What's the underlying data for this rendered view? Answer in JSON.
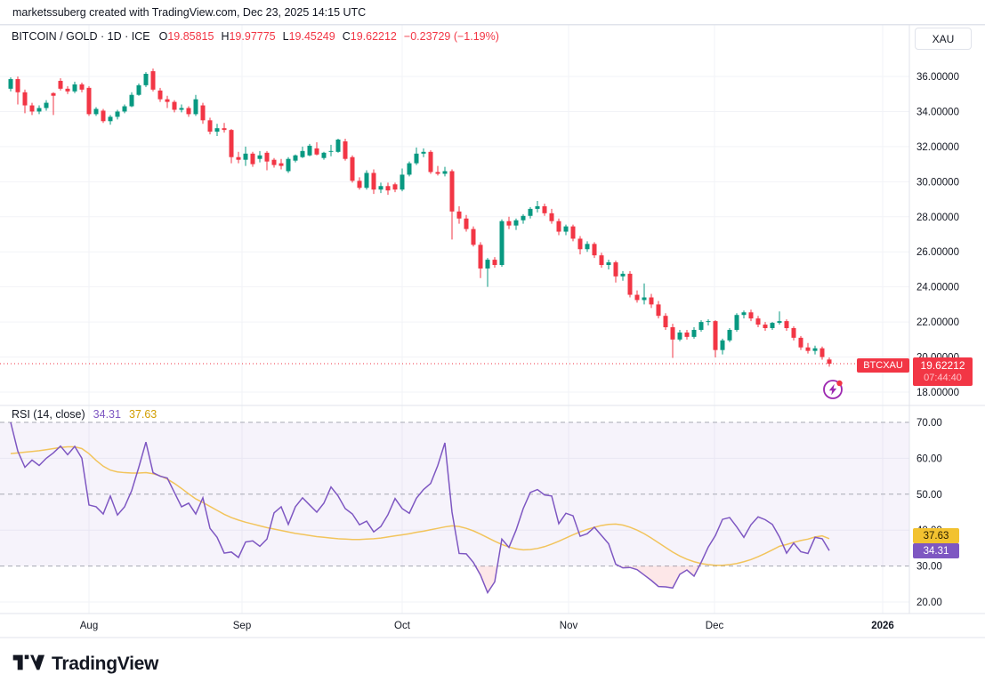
{
  "topbar": {
    "attribution": "marketssuberg created with TradingView.com, Dec 23, 2025 14:15 UTC"
  },
  "legend": {
    "title": "BITCOIN / GOLD · 1D · ICE",
    "o_label": "O",
    "o": "19.85815",
    "h_label": "H",
    "h": "19.97775",
    "l_label": "L",
    "l": "19.45249",
    "c_label": "C",
    "c": "19.62212",
    "change": "−0.23729 (−1.19%)"
  },
  "axis": {
    "currency": "XAU"
  },
  "price_label": {
    "symbol": "BTCXAU",
    "price": "19.62212",
    "countdown": "07:44:40"
  },
  "rsi_legend": {
    "title": "RSI (14, close)",
    "value": "34.31",
    "ma_value": "37.63"
  },
  "badges": {
    "ma": "37.63",
    "rsi": "34.31"
  },
  "footer": {
    "brand": "TradingView"
  },
  "colors": {
    "up": "#089981",
    "down": "#F23645",
    "rsi_line": "#7E57C2",
    "rsi_ma_line": "#F2C45C",
    "band_fill": "rgba(126,87,194,0.07)",
    "oversold_fill": "rgba(242,54,69,0.12)",
    "grid": "#F2F3F7",
    "dashed": "#A6A9B3",
    "separator": "#E0E3EB",
    "text": "#131722",
    "icon_purple": "#9C27B0"
  },
  "chart_data": {
    "type": "candlestick",
    "symbol": "BITCOIN / GOLD",
    "interval": "1D",
    "exchange": "ICE",
    "title": "BITCOIN / GOLD · 1D · ICE",
    "last": {
      "o": 19.85815,
      "h": 19.97775,
      "l": 19.45249,
      "c": 19.62212,
      "change": -0.23729,
      "change_pct": -1.19
    },
    "price_axis": {
      "ticks": [
        36,
        34,
        32,
        30,
        28,
        26,
        24,
        22,
        20,
        18
      ],
      "decimals": 5
    },
    "time_axis": {
      "labels": [
        {
          "label": "Aug"
        },
        {
          "label": "Sep"
        },
        {
          "label": "Oct"
        },
        {
          "label": "Nov"
        },
        {
          "label": "Dec"
        },
        {
          "label": "2026",
          "bold": true
        }
      ]
    },
    "grid": true,
    "candles": [
      [
        35.3,
        35.95,
        35.15,
        35.85
      ],
      [
        35.85,
        36.0,
        34.4,
        35.1
      ],
      [
        35.1,
        35.25,
        33.9,
        34.35
      ],
      [
        34.35,
        34.5,
        33.8,
        34.0
      ],
      [
        34.0,
        34.35,
        33.85,
        34.2
      ],
      [
        34.2,
        34.65,
        34.05,
        34.5
      ],
      [
        35.05,
        35.1,
        33.8,
        34.9
      ],
      [
        35.75,
        35.9,
        35.2,
        35.3
      ],
      [
        35.3,
        35.45,
        35.0,
        35.15
      ],
      [
        35.15,
        35.7,
        35.05,
        35.55
      ],
      [
        35.55,
        35.65,
        35.1,
        35.25
      ],
      [
        35.35,
        35.45,
        33.75,
        33.85
      ],
      [
        33.85,
        34.25,
        33.75,
        34.15
      ],
      [
        34.05,
        34.15,
        33.35,
        33.45
      ],
      [
        33.45,
        33.8,
        33.25,
        33.7
      ],
      [
        33.7,
        34.1,
        33.55,
        34.0
      ],
      [
        34.0,
        34.4,
        33.9,
        34.3
      ],
      [
        34.3,
        35.1,
        34.25,
        34.95
      ],
      [
        34.95,
        35.6,
        34.9,
        35.5
      ],
      [
        35.5,
        36.25,
        35.4,
        36.15
      ],
      [
        36.3,
        36.45,
        35.15,
        35.25
      ],
      [
        35.2,
        35.35,
        34.55,
        34.7
      ],
      [
        34.7,
        34.9,
        34.2,
        34.55
      ],
      [
        34.55,
        34.65,
        33.95,
        34.1
      ],
      [
        34.1,
        34.4,
        33.95,
        34.2
      ],
      [
        34.2,
        34.3,
        33.7,
        33.85
      ],
      [
        33.85,
        34.95,
        33.75,
        34.7
      ],
      [
        34.35,
        34.5,
        33.3,
        33.5
      ],
      [
        33.5,
        33.65,
        32.7,
        32.85
      ],
      [
        32.85,
        33.3,
        32.6,
        33.05
      ],
      [
        33.05,
        33.35,
        32.8,
        32.95
      ],
      [
        32.95,
        33.0,
        31.05,
        31.4
      ],
      [
        31.4,
        31.7,
        31.05,
        31.25
      ],
      [
        31.25,
        32.0,
        30.9,
        31.6
      ],
      [
        31.6,
        31.7,
        30.85,
        31.0
      ],
      [
        31.3,
        31.75,
        31.1,
        31.5
      ],
      [
        31.65,
        31.75,
        30.65,
        31.15
      ],
      [
        31.25,
        31.35,
        30.8,
        30.95
      ],
      [
        31.05,
        31.3,
        30.7,
        30.9
      ],
      [
        30.6,
        31.4,
        30.5,
        31.3
      ],
      [
        31.2,
        31.55,
        31.1,
        31.5
      ],
      [
        31.4,
        32.0,
        31.35,
        31.75
      ],
      [
        31.5,
        32.15,
        31.45,
        32.05
      ],
      [
        31.9,
        32.25,
        31.5,
        31.55
      ],
      [
        31.35,
        31.7,
        31.25,
        31.65
      ],
      [
        31.7,
        32.1,
        31.45,
        31.75
      ],
      [
        31.7,
        32.45,
        31.65,
        32.4
      ],
      [
        32.3,
        32.45,
        31.2,
        31.3
      ],
      [
        31.4,
        31.5,
        29.95,
        30.05
      ],
      [
        30.05,
        30.25,
        29.55,
        29.65
      ],
      [
        29.65,
        30.65,
        29.55,
        30.5
      ],
      [
        30.5,
        30.7,
        29.3,
        29.55
      ],
      [
        29.55,
        29.95,
        29.35,
        29.75
      ],
      [
        29.75,
        29.95,
        29.25,
        29.5
      ],
      [
        29.85,
        29.95,
        29.4,
        29.55
      ],
      [
        29.55,
        30.75,
        29.45,
        30.4
      ],
      [
        30.4,
        31.15,
        30.3,
        31.05
      ],
      [
        31.05,
        31.95,
        30.95,
        31.6
      ],
      [
        31.6,
        31.9,
        31.4,
        31.7
      ],
      [
        31.7,
        31.8,
        30.45,
        30.55
      ],
      [
        30.55,
        30.9,
        30.35,
        30.45
      ],
      [
        30.45,
        30.85,
        30.3,
        30.6
      ],
      [
        30.6,
        30.7,
        26.7,
        28.3
      ],
      [
        28.3,
        28.6,
        27.6,
        27.9
      ],
      [
        27.9,
        28.1,
        27.15,
        27.3
      ],
      [
        27.3,
        27.45,
        26.3,
        26.4
      ],
      [
        26.4,
        26.55,
        24.5,
        25.05
      ],
      [
        25.05,
        25.65,
        24.0,
        25.55
      ],
      [
        25.55,
        25.7,
        25.1,
        25.25
      ],
      [
        25.25,
        27.85,
        25.15,
        27.75
      ],
      [
        27.75,
        28.0,
        27.3,
        27.5
      ],
      [
        27.5,
        27.9,
        27.25,
        27.8
      ],
      [
        27.8,
        28.15,
        27.6,
        28.05
      ],
      [
        28.05,
        28.55,
        27.9,
        28.45
      ],
      [
        28.45,
        28.9,
        28.25,
        28.6
      ],
      [
        28.6,
        28.75,
        28.05,
        28.2
      ],
      [
        28.2,
        28.45,
        27.6,
        27.75
      ],
      [
        27.75,
        27.9,
        26.95,
        27.15
      ],
      [
        27.15,
        27.55,
        26.95,
        27.45
      ],
      [
        27.45,
        27.55,
        26.6,
        26.75
      ],
      [
        26.75,
        26.9,
        25.85,
        26.15
      ],
      [
        26.15,
        26.6,
        26.0,
        26.45
      ],
      [
        26.45,
        26.55,
        25.65,
        25.8
      ],
      [
        25.8,
        25.95,
        25.1,
        25.25
      ],
      [
        25.25,
        25.55,
        25.0,
        25.4
      ],
      [
        25.4,
        25.5,
        24.25,
        24.6
      ],
      [
        24.6,
        24.9,
        24.35,
        24.75
      ],
      [
        24.75,
        24.9,
        23.4,
        23.55
      ],
      [
        23.55,
        23.8,
        23.1,
        23.25
      ],
      [
        23.25,
        24.2,
        23.0,
        23.4
      ],
      [
        23.4,
        23.6,
        22.8,
        23.0
      ],
      [
        23.0,
        23.2,
        22.2,
        22.35
      ],
      [
        22.35,
        22.5,
        21.55,
        21.7
      ],
      [
        21.7,
        21.9,
        19.95,
        21.0
      ],
      [
        21.0,
        21.55,
        20.9,
        21.4
      ],
      [
        21.4,
        21.55,
        21.0,
        21.15
      ],
      [
        21.15,
        21.7,
        21.05,
        21.55
      ],
      [
        21.55,
        22.1,
        21.45,
        22.0
      ],
      [
        22.0,
        22.15,
        21.8,
        22.05
      ],
      [
        22.05,
        22.1,
        19.98,
        20.4
      ],
      [
        20.4,
        21.05,
        20.15,
        20.95
      ],
      [
        20.95,
        21.65,
        20.85,
        21.55
      ],
      [
        21.55,
        22.5,
        21.45,
        22.4
      ],
      [
        22.4,
        22.65,
        22.2,
        22.55
      ],
      [
        22.55,
        22.7,
        22.05,
        22.2
      ],
      [
        22.2,
        22.35,
        21.7,
        21.85
      ],
      [
        21.85,
        22.0,
        21.5,
        21.65
      ],
      [
        21.65,
        22.0,
        21.55,
        21.95
      ],
      [
        21.95,
        22.6,
        21.85,
        22.05
      ],
      [
        22.05,
        22.15,
        21.5,
        21.65
      ],
      [
        21.65,
        21.75,
        20.95,
        21.1
      ],
      [
        21.1,
        21.2,
        20.4,
        20.55
      ],
      [
        20.55,
        20.8,
        20.2,
        20.35
      ],
      [
        20.35,
        20.65,
        20.15,
        20.5
      ],
      [
        20.5,
        20.6,
        19.85,
        20.0
      ],
      [
        19.86,
        19.98,
        19.45,
        19.62
      ]
    ],
    "rsi": {
      "length": 14,
      "source": "close",
      "last": 34.31,
      "ma_last": 37.63,
      "levels": {
        "dashed": [
          70,
          50,
          30
        ],
        "solid": [
          60,
          40,
          20
        ]
      },
      "axis_ticks": [
        70,
        60,
        50,
        40,
        30,
        20
      ],
      "values": [
        70,
        62,
        57.5,
        59.5,
        58,
        60,
        61.5,
        63.4,
        61,
        63.3,
        60,
        47,
        46.5,
        44.5,
        49.5,
        44.2,
        46.5,
        51,
        57.5,
        64.5,
        56,
        55,
        54.5,
        50.5,
        46.5,
        47.5,
        44.5,
        49,
        40.5,
        38,
        33.6,
        33.9,
        32.4,
        36.7,
        37,
        35.5,
        37.5,
        44.8,
        46.5,
        41.6,
        46.5,
        49,
        47,
        45,
        47.5,
        52,
        49.5,
        46,
        44.5,
        41.5,
        42.5,
        39.5,
        41,
        44.3,
        48.8,
        46,
        44.7,
        48.9,
        51.3,
        53,
        58,
        64.3,
        45,
        33.5,
        33.4,
        31,
        27.5,
        22.6,
        25.6,
        37.5,
        35.2,
        40,
        46,
        50.5,
        51.3,
        49.8,
        49.5,
        41.8,
        44.7,
        44,
        38.3,
        39,
        40.8,
        38.5,
        36.2,
        30.5,
        29.5,
        29.6,
        29,
        27.5,
        26,
        24.3,
        24.2,
        23.9,
        27.7,
        28.9,
        27.2,
        31,
        35.3,
        38.5,
        43,
        43.5,
        40.9,
        38,
        41.5,
        43.7,
        42.9,
        41.6,
        38.1,
        33.6,
        36.4,
        34,
        33.5,
        38,
        37.6,
        34.31
      ],
      "ma": [
        61.3,
        61.5,
        61.7,
        61.9,
        62.1,
        62.4,
        62.7,
        63.0,
        63.2,
        63.2,
        62.7,
        61.3,
        59.4,
        57.8,
        56.7,
        56.2,
        56.0,
        55.9,
        55.9,
        56.0,
        55.7,
        55.1,
        54.2,
        53.0,
        51.6,
        50.1,
        48.7,
        47.7,
        46.6,
        45.5,
        44.4,
        43.5,
        42.8,
        42.2,
        41.7,
        41.2,
        40.7,
        40.3,
        39.9,
        39.5,
        39.1,
        38.8,
        38.5,
        38.2,
        38.0,
        37.8,
        37.6,
        37.5,
        37.4,
        37.4,
        37.5,
        37.6,
        37.8,
        38.1,
        38.4,
        38.7,
        39.0,
        39.4,
        39.7,
        40.1,
        40.5,
        40.9,
        41.2,
        41.0,
        40.5,
        39.8,
        38.9,
        37.9,
        36.9,
        36.0,
        35.3,
        34.8,
        34.5,
        34.6,
        34.9,
        35.4,
        36.1,
        36.9,
        37.8,
        38.7,
        39.5,
        40.2,
        40.8,
        41.3,
        41.6,
        41.7,
        41.4,
        40.8,
        40.0,
        39.0,
        37.8,
        36.5,
        35.2,
        33.9,
        32.8,
        31.9,
        31.2,
        30.7,
        30.4,
        30.2,
        30.2,
        30.4,
        30.7,
        31.2,
        31.8,
        32.6,
        33.5,
        34.5,
        35.5,
        36.0,
        36.6,
        37.1,
        37.5,
        38.1,
        38.4,
        37.63
      ]
    }
  }
}
